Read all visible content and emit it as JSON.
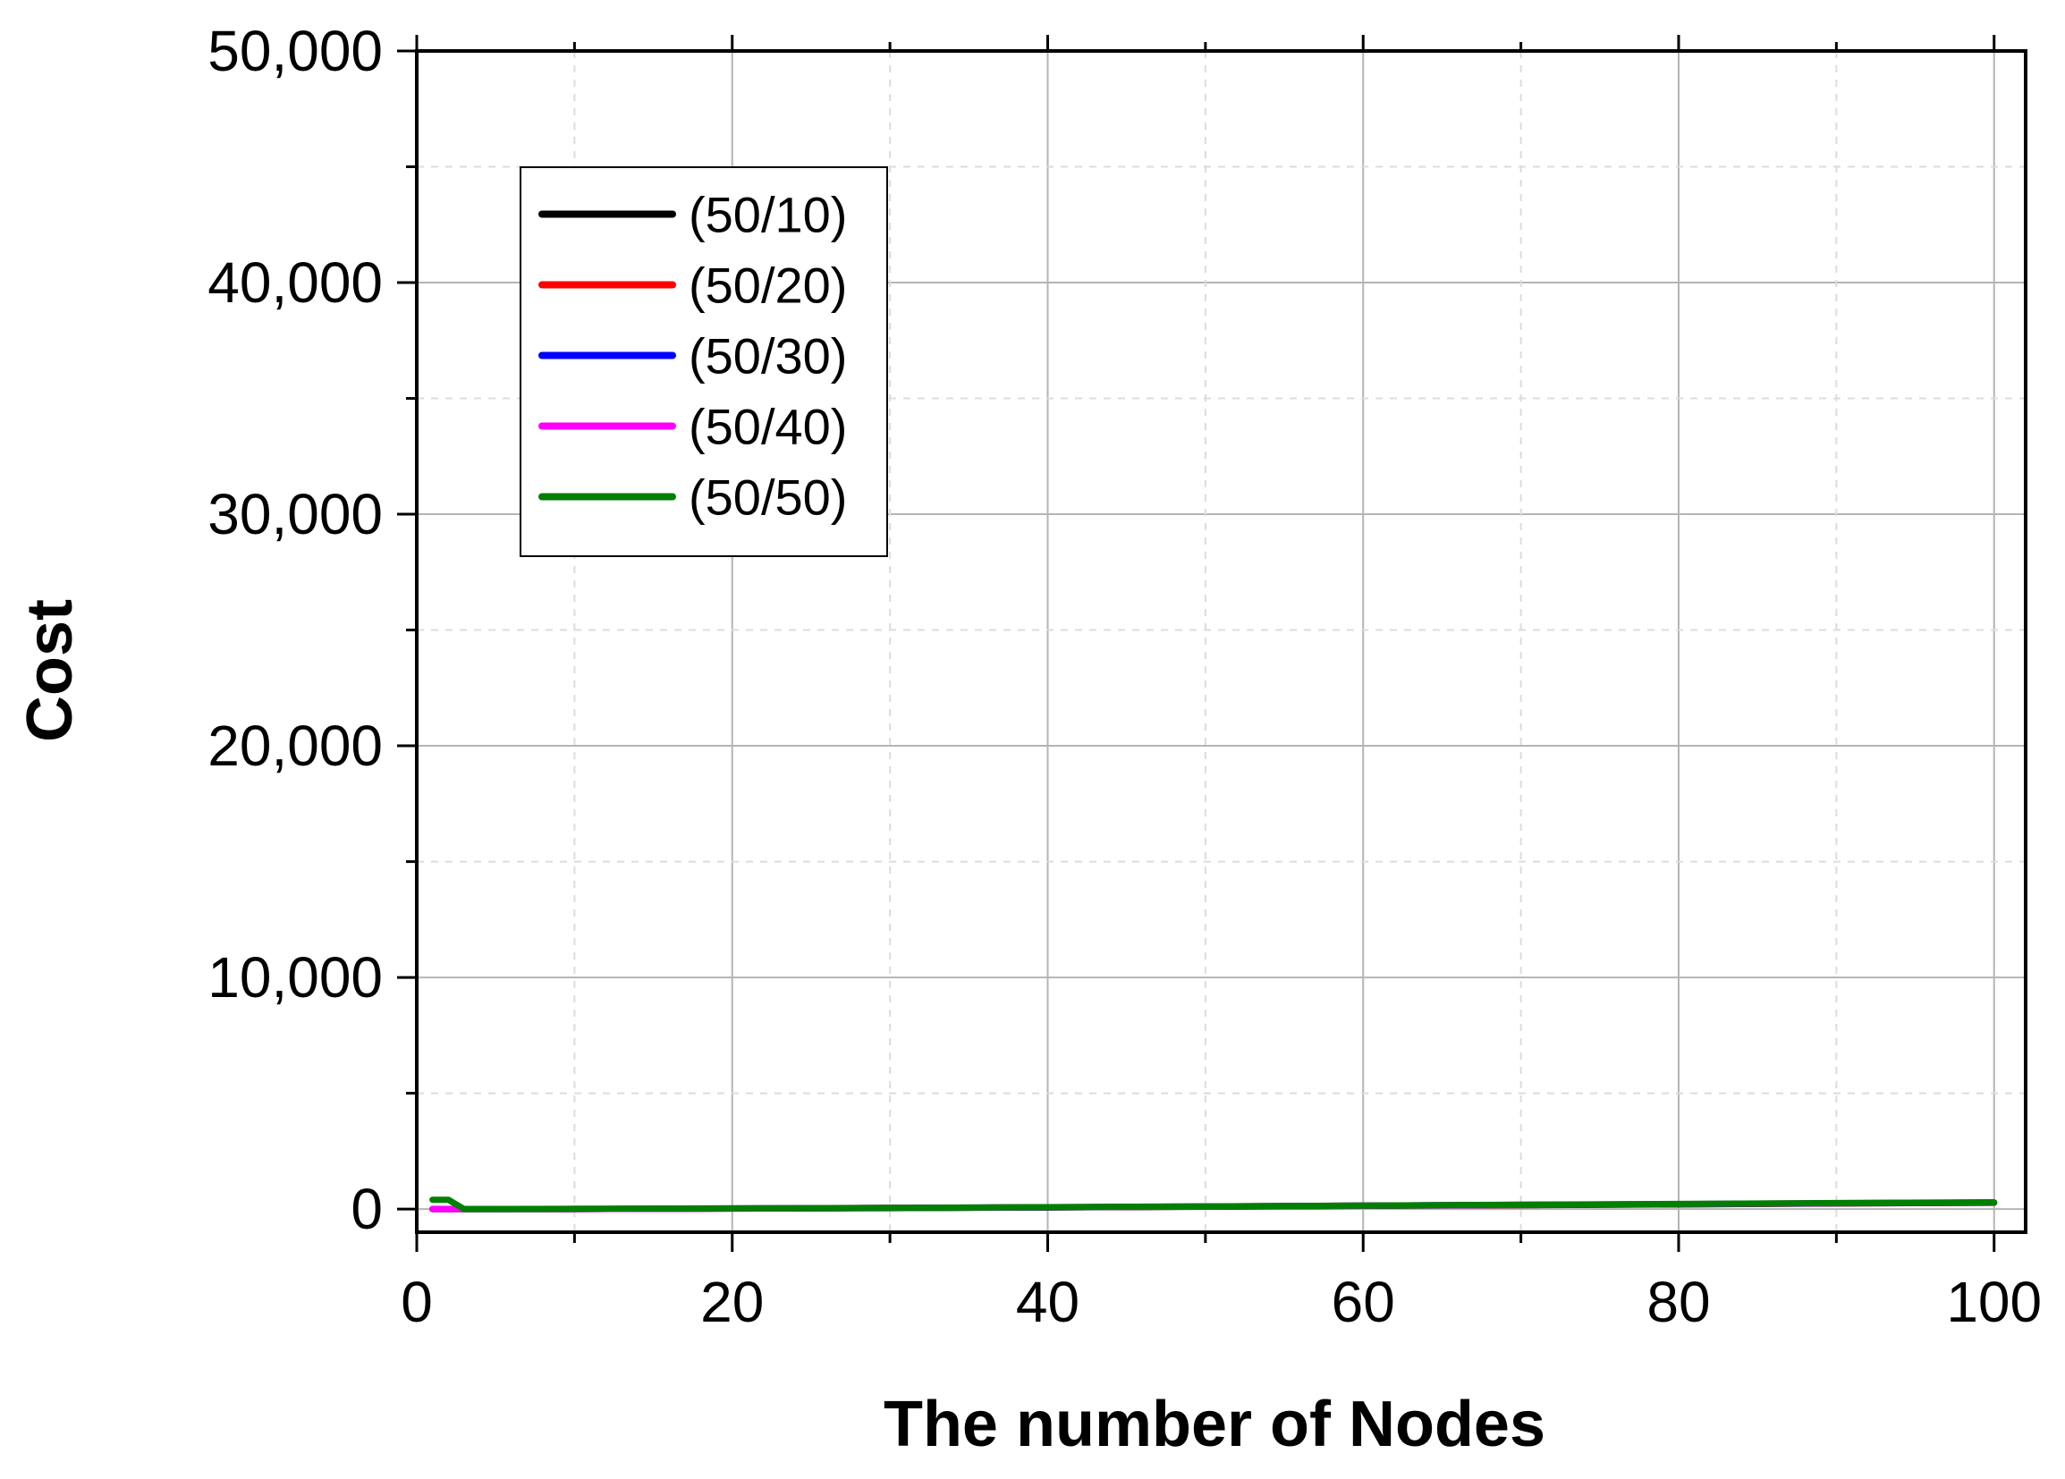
{
  "chart_data": {
    "type": "line",
    "title": "",
    "xlabel": "The number of Nodes",
    "ylabel": "Cost",
    "xlim": [
      0,
      102
    ],
    "ylim": [
      -1000,
      50000
    ],
    "x_ticks": [
      0,
      20,
      40,
      60,
      80,
      100
    ],
    "x_tick_labels": [
      "0",
      "20",
      "40",
      "60",
      "80",
      "100"
    ],
    "y_ticks": [
      0,
      10000,
      20000,
      30000,
      40000,
      50000
    ],
    "y_tick_labels": [
      "0",
      "10,000",
      "20,000",
      "30,000",
      "40,000",
      "50,000"
    ],
    "grid": true,
    "legend_position": "top-left",
    "series": [
      {
        "name": "(50/10)",
        "color": "#000000",
        "points": [
          [
            1,
            0
          ],
          [
            2,
            0
          ],
          [
            3,
            0
          ],
          [
            10,
            0
          ],
          [
            20,
            20
          ],
          [
            30,
            40
          ],
          [
            40,
            70
          ],
          [
            50,
            100
          ],
          [
            60,
            140
          ],
          [
            70,
            170
          ],
          [
            80,
            200
          ],
          [
            90,
            240
          ],
          [
            100,
            270
          ]
        ]
      },
      {
        "name": "(50/20)",
        "color": "#ff0000",
        "points": [
          [
            1,
            0
          ],
          [
            2,
            0
          ],
          [
            3,
            0
          ],
          [
            10,
            0
          ],
          [
            20,
            25
          ],
          [
            30,
            45
          ],
          [
            40,
            75
          ],
          [
            50,
            105
          ],
          [
            60,
            145
          ],
          [
            70,
            175
          ],
          [
            80,
            205
          ],
          [
            90,
            245
          ],
          [
            100,
            275
          ]
        ]
      },
      {
        "name": "(50/30)",
        "color": "#0000ff",
        "points": [
          [
            1,
            0
          ],
          [
            2,
            0
          ],
          [
            3,
            0
          ],
          [
            10,
            0
          ],
          [
            20,
            25
          ],
          [
            30,
            45
          ],
          [
            40,
            75
          ],
          [
            50,
            110
          ],
          [
            60,
            145
          ],
          [
            70,
            180
          ],
          [
            80,
            210
          ],
          [
            90,
            250
          ],
          [
            100,
            280
          ]
        ]
      },
      {
        "name": "(50/40)",
        "color": "#ff00ff",
        "points": [
          [
            1,
            0
          ],
          [
            2,
            0
          ],
          [
            3,
            0
          ],
          [
            10,
            0
          ],
          [
            20,
            25
          ],
          [
            30,
            50
          ],
          [
            40,
            80
          ],
          [
            50,
            110
          ],
          [
            60,
            150
          ],
          [
            70,
            180
          ],
          [
            80,
            215
          ],
          [
            90,
            255
          ],
          [
            100,
            285
          ]
        ]
      },
      {
        "name": "(50/50)",
        "color": "#008000",
        "points": [
          [
            1,
            400
          ],
          [
            2,
            400
          ],
          [
            3,
            0
          ],
          [
            10,
            10
          ],
          [
            20,
            30
          ],
          [
            30,
            50
          ],
          [
            40,
            80
          ],
          [
            50,
            115
          ],
          [
            60,
            150
          ],
          [
            70,
            185
          ],
          [
            80,
            220
          ],
          [
            90,
            260
          ],
          [
            100,
            290
          ]
        ]
      }
    ]
  }
}
